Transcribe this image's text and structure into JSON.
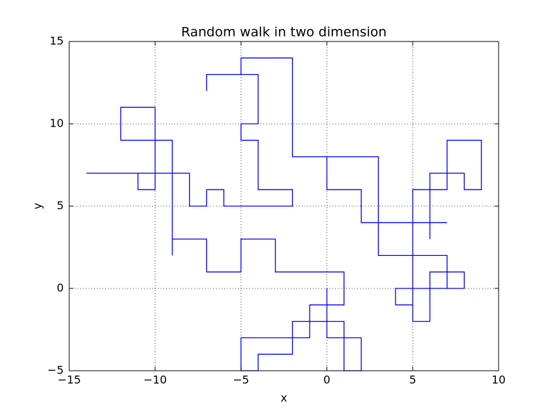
{
  "chart_data": {
    "type": "line",
    "title": "Random walk in two dimension",
    "xlabel": "x",
    "ylabel": "y",
    "color": "#0000ff",
    "grid": true,
    "xlim": [
      -15,
      10
    ],
    "ylim": [
      -5,
      15
    ],
    "xticks": [
      {
        "value": -15,
        "label": "−15"
      },
      {
        "value": -10,
        "label": "−10"
      },
      {
        "value": -5,
        "label": "−5"
      },
      0,
      5,
      10
    ],
    "yticks": [
      {
        "value": -5,
        "label": "−5"
      },
      0,
      5,
      10,
      15
    ],
    "x": [
      0,
      0,
      2,
      2,
      1,
      1,
      -2,
      -2,
      -4,
      -4,
      -5,
      -5,
      -1,
      -1,
      1,
      1,
      -3,
      -3,
      -5,
      -5,
      -7,
      -7,
      -9,
      -9,
      -9,
      -10,
      -10,
      -12,
      -12,
      -10,
      -10,
      -11,
      -11,
      -14,
      -8,
      -8,
      -7,
      -7,
      -6,
      -6,
      -2,
      -2,
      -4,
      -4,
      -5,
      -5,
      -4,
      -4,
      -7,
      -7,
      -7,
      -5,
      -5,
      -2,
      -2,
      0,
      0,
      2,
      2,
      3,
      3,
      5,
      5,
      4,
      4,
      8,
      8,
      6,
      6,
      5,
      5,
      7,
      7,
      5,
      5,
      7,
      7,
      9,
      9,
      8,
      8,
      6,
      6,
      6,
      7,
      3,
      3,
      0
    ],
    "values": [
      0,
      -3,
      -3,
      -5,
      -5,
      -2,
      -2,
      -4,
      -4,
      -5,
      -5,
      -3,
      -3,
      -1,
      -1,
      1,
      1,
      3,
      3,
      1,
      1,
      3,
      3,
      2,
      9,
      9,
      11,
      11,
      9,
      9,
      6,
      6,
      7,
      7,
      7,
      5,
      5,
      6,
      6,
      5,
      5,
      6,
      6,
      9,
      9,
      10,
      10,
      13,
      13,
      12,
      13,
      13,
      14,
      14,
      8,
      8,
      6,
      6,
      4,
      4,
      2,
      2,
      -1,
      -1,
      0,
      0,
      1,
      1,
      -2,
      -2,
      2,
      2,
      0,
      0,
      6,
      6,
      9,
      9,
      6,
      6,
      7,
      7,
      3,
      4,
      4,
      4,
      8,
      8
    ]
  }
}
